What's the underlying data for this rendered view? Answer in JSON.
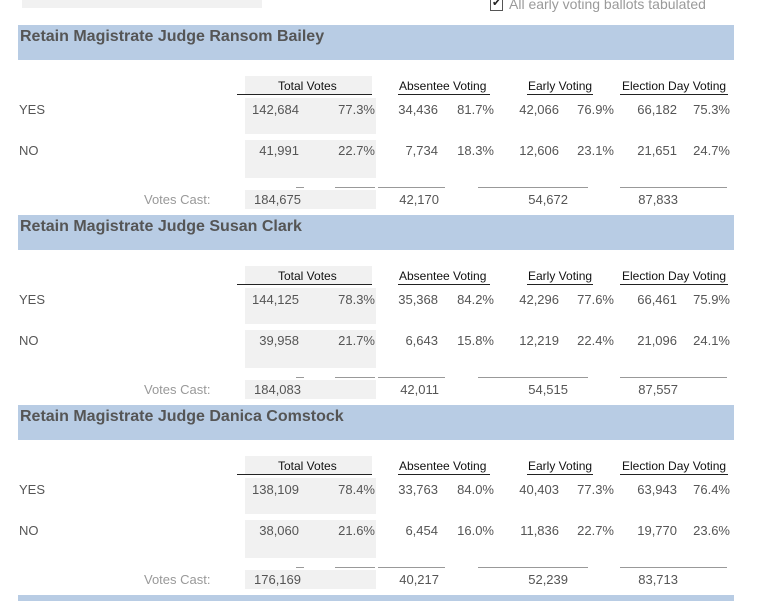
{
  "top": {
    "checkbox_label": "All early voting ballots tabulated",
    "checked": true
  },
  "columns": {
    "total": "Total Votes",
    "absentee": "Absentee Voting",
    "early": "Early Voting",
    "election_day": "Election Day Voting"
  },
  "votes_cast_label": "Votes Cast:",
  "races": [
    {
      "title": "Retain Magistrate Judge Ransom Bailey",
      "rows": [
        {
          "label": "YES",
          "total": "142,684",
          "total_pct": "77.3%",
          "absentee": "34,436",
          "absentee_pct": "81.7%",
          "early": "42,066",
          "early_pct": "76.9%",
          "eday": "66,182",
          "eday_pct": "75.3%"
        },
        {
          "label": "NO",
          "total": "41,991",
          "total_pct": "22.7%",
          "absentee": "7,734",
          "absentee_pct": "18.3%",
          "early": "12,606",
          "early_pct": "23.1%",
          "eday": "21,651",
          "eday_pct": "24.7%"
        }
      ],
      "cast": {
        "total": "184,675",
        "absentee": "42,170",
        "early": "54,672",
        "eday": "87,833"
      }
    },
    {
      "title": "Retain Magistrate Judge Susan Clark",
      "rows": [
        {
          "label": "YES",
          "total": "144,125",
          "total_pct": "78.3%",
          "absentee": "35,368",
          "absentee_pct": "84.2%",
          "early": "42,296",
          "early_pct": "77.6%",
          "eday": "66,461",
          "eday_pct": "75.9%"
        },
        {
          "label": "NO",
          "total": "39,958",
          "total_pct": "21.7%",
          "absentee": "6,643",
          "absentee_pct": "15.8%",
          "early": "12,219",
          "early_pct": "22.4%",
          "eday": "21,096",
          "eday_pct": "24.1%"
        }
      ],
      "cast": {
        "total": "184,083",
        "absentee": "42,011",
        "early": "54,515",
        "eday": "87,557"
      }
    },
    {
      "title": "Retain Magistrate Judge Danica Comstock",
      "rows": [
        {
          "label": "YES",
          "total": "138,109",
          "total_pct": "78.4%",
          "absentee": "33,763",
          "absentee_pct": "84.0%",
          "early": "40,403",
          "early_pct": "77.3%",
          "eday": "63,943",
          "eday_pct": "76.4%"
        },
        {
          "label": "NO",
          "total": "38,060",
          "total_pct": "21.6%",
          "absentee": "6,454",
          "absentee_pct": "16.0%",
          "early": "11,836",
          "early_pct": "22.7%",
          "eday": "19,770",
          "eday_pct": "23.6%"
        }
      ],
      "cast": {
        "total": "176,169",
        "absentee": "40,217",
        "early": "52,239",
        "eday": "83,713"
      }
    }
  ]
}
